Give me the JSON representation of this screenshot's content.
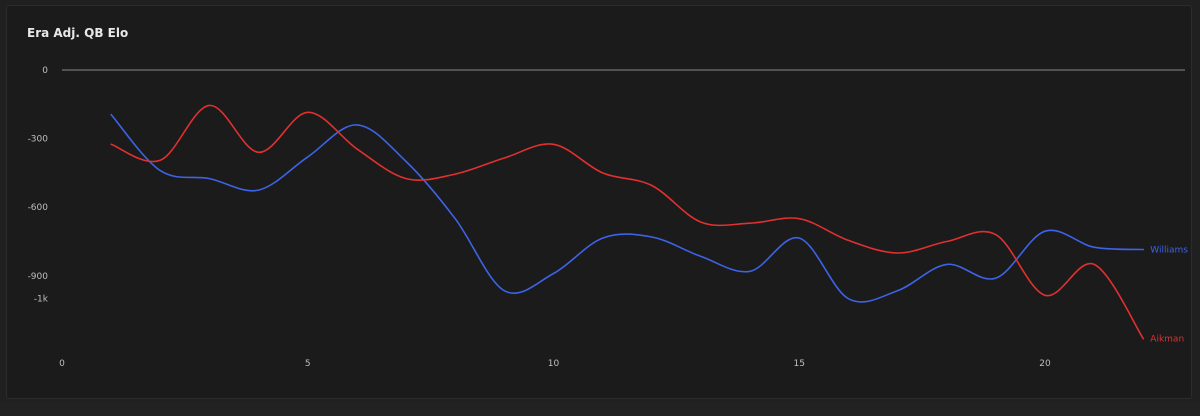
{
  "window": {
    "title": "Era Adj. QB Elo"
  },
  "chart_data": {
    "type": "line",
    "title": "Era Adj. QB Elo",
    "xlabel": "",
    "ylabel": "",
    "xlim": [
      0,
      22.5
    ],
    "ylim": [
      -1000,
      0
    ],
    "x_ticks": [
      0,
      5,
      10,
      15,
      20
    ],
    "x_tick_labels": [
      "0",
      "5",
      "10",
      "15",
      "20"
    ],
    "y_ticks": [
      0,
      -300,
      -600,
      -900,
      -1000
    ],
    "y_tick_labels": [
      "0",
      "-300",
      "-600",
      "-900",
      "-1k"
    ],
    "grid": false,
    "legend": "end-labels",
    "x": [
      1,
      2,
      3,
      4,
      5,
      6,
      7,
      8,
      9,
      10,
      11,
      12,
      13,
      14,
      15,
      16,
      17,
      18,
      19,
      20,
      21,
      22
    ],
    "series": [
      {
        "name": "Williams",
        "color": "#3d63e6",
        "values": [
          -195,
          -440,
          -475,
          -525,
          -380,
          -240,
          -400,
          -650,
          -965,
          -890,
          -735,
          -730,
          -815,
          -880,
          -735,
          -1000,
          -965,
          -850,
          -910,
          -705,
          -775,
          -785
        ]
      },
      {
        "name": "Aikman",
        "color": "#e03030",
        "values": [
          -325,
          -395,
          -155,
          -360,
          -185,
          -345,
          -475,
          -455,
          -385,
          -325,
          -450,
          -505,
          -665,
          -670,
          -650,
          -745,
          -800,
          -750,
          -720,
          -985,
          -850,
          -1175
        ]
      }
    ]
  }
}
